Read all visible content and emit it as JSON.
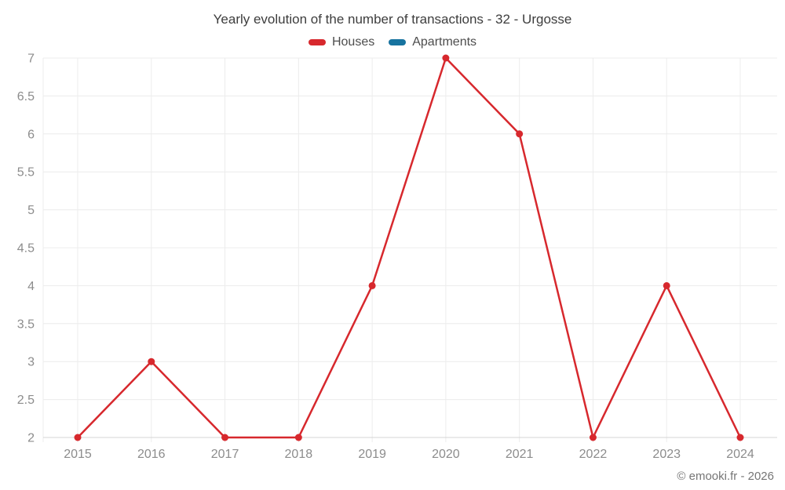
{
  "chart_data": {
    "type": "line",
    "title": "Yearly evolution of the number of transactions - 32 - Urgosse",
    "categories": [
      "2015",
      "2016",
      "2017",
      "2018",
      "2019",
      "2020",
      "2021",
      "2022",
      "2023",
      "2024"
    ],
    "series": [
      {
        "name": "Houses",
        "color": "#d7282d",
        "values": [
          2,
          3,
          2,
          2,
          4,
          7,
          6,
          2,
          4,
          2
        ]
      },
      {
        "name": "Apartments",
        "color": "#17739f",
        "values": []
      }
    ],
    "xlabel": "",
    "ylabel": "",
    "ylim": [
      2,
      7
    ],
    "y_ticks": [
      2,
      2.5,
      3,
      3.5,
      4,
      4.5,
      5,
      5.5,
      6,
      6.5,
      7
    ],
    "grid": true,
    "legend_position": "top",
    "marker_radius": 4.5,
    "line_width": 2.5,
    "colors": {
      "grid": "#ececec",
      "axis": "#d4d4d4",
      "tick_text": "#8c8c8c",
      "title_text": "#3d3d3d",
      "legend_text": "#4d4d4d",
      "footer_text": "#757575",
      "background": "#ffffff"
    }
  },
  "footer": {
    "credit": "© emooki.fr - 2026"
  }
}
